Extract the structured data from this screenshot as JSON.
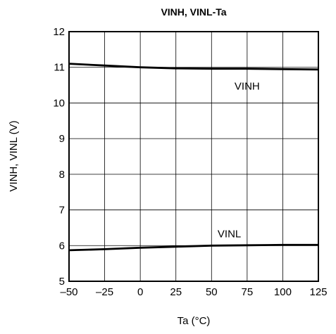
{
  "chart_data": {
    "type": "line",
    "title": "VINH, VINL-Ta",
    "xlabel": "Ta (°C)",
    "ylabel": "VINH, VINL (V)",
    "xlim": [
      -50,
      125
    ],
    "ylim": [
      5,
      12
    ],
    "xticks": [
      "–50",
      "–25",
      "0",
      "25",
      "50",
      "75",
      "100",
      "125"
    ],
    "yticks": [
      "5",
      "6",
      "7",
      "8",
      "9",
      "10",
      "11",
      "12"
    ],
    "grid": true,
    "series": [
      {
        "name": "VINH",
        "x": [
          -50,
          -25,
          0,
          25,
          50,
          75,
          100,
          125
        ],
        "values": [
          11.1,
          11.05,
          11.0,
          10.97,
          10.96,
          10.96,
          10.95,
          10.94
        ]
      },
      {
        "name": "VINL",
        "x": [
          -50,
          -25,
          0,
          25,
          50,
          75,
          100,
          125
        ],
        "values": [
          5.87,
          5.9,
          5.94,
          5.97,
          6.0,
          6.01,
          6.02,
          6.02
        ]
      }
    ]
  }
}
